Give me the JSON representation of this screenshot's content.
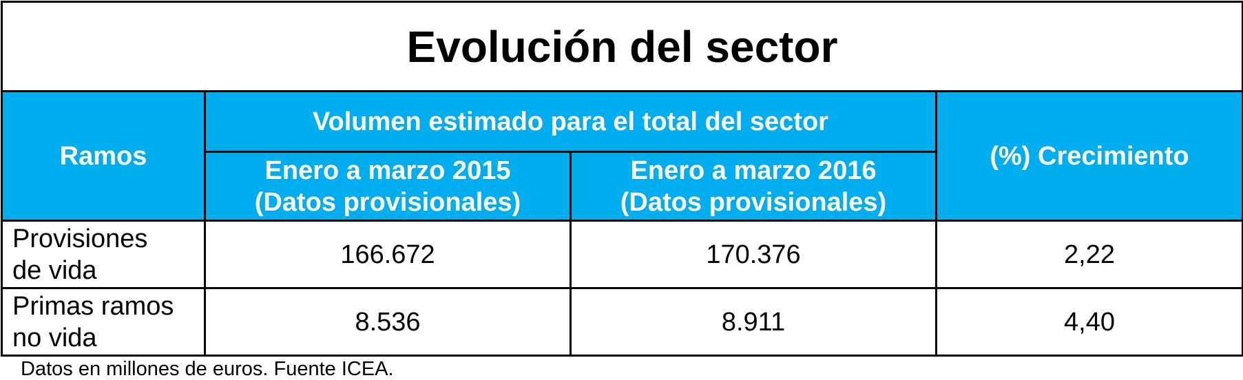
{
  "title": "Evolución del sector",
  "header": {
    "ramos": "Ramos",
    "volumen": "Volumen estimado para el total del sector",
    "col_2015_line1": "Enero a marzo 2015",
    "col_2015_line2": "(Datos provisionales)",
    "col_2016_line1": "Enero a marzo 2016",
    "col_2016_line2": "(Datos provisionales)",
    "crecimiento": "(%) Crecimiento"
  },
  "rows": [
    {
      "ramo_line1": "Provisiones",
      "ramo_line2": "de vida",
      "v2015": "166.672",
      "v2016": "170.376",
      "crecimiento": "2,22"
    },
    {
      "ramo_line1": "Primas ramos",
      "ramo_line2": "no vida",
      "v2015": "8.536",
      "v2016": "8.911",
      "crecimiento": "4,40"
    }
  ],
  "note": "Datos en millones de euros. Fuente ICEA.",
  "colors": {
    "header_bg": "#00aeef",
    "header_text": "#ffffff",
    "border": "#000000"
  }
}
